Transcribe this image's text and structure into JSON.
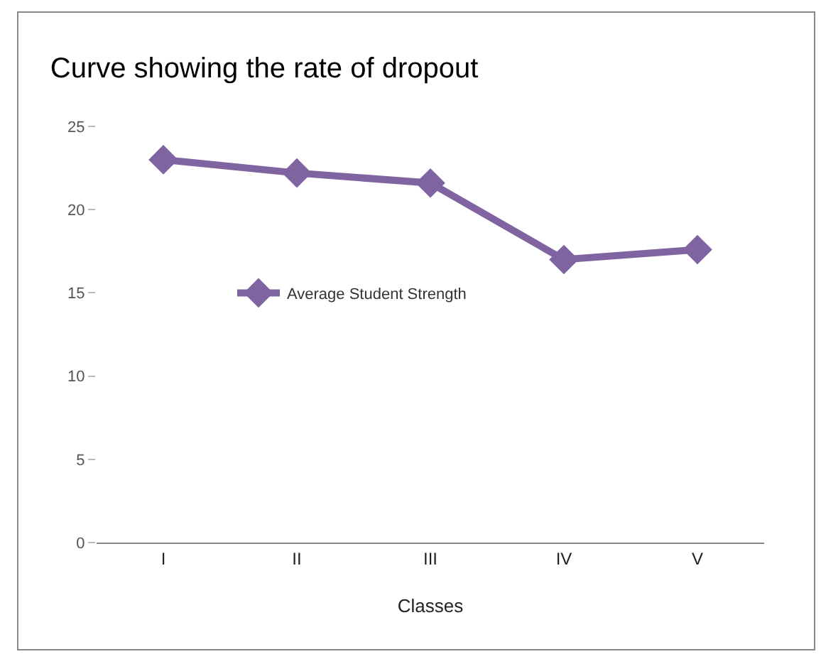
{
  "chart_data": {
    "type": "line",
    "title": "Curve showing the rate of dropout",
    "xlabel": "Classes",
    "categories": [
      "I",
      "II",
      "III",
      "IV",
      "V"
    ],
    "series": [
      {
        "name": "Average Student Strength",
        "color": "#8064a2",
        "values": [
          23.0,
          22.2,
          21.6,
          17.0,
          17.6
        ]
      }
    ],
    "ylim": [
      0,
      25
    ],
    "yticks": [
      0,
      5,
      10,
      15,
      20,
      25
    ],
    "grid": false,
    "legend": "center",
    "marker": "diamond",
    "line_style": "solid"
  }
}
